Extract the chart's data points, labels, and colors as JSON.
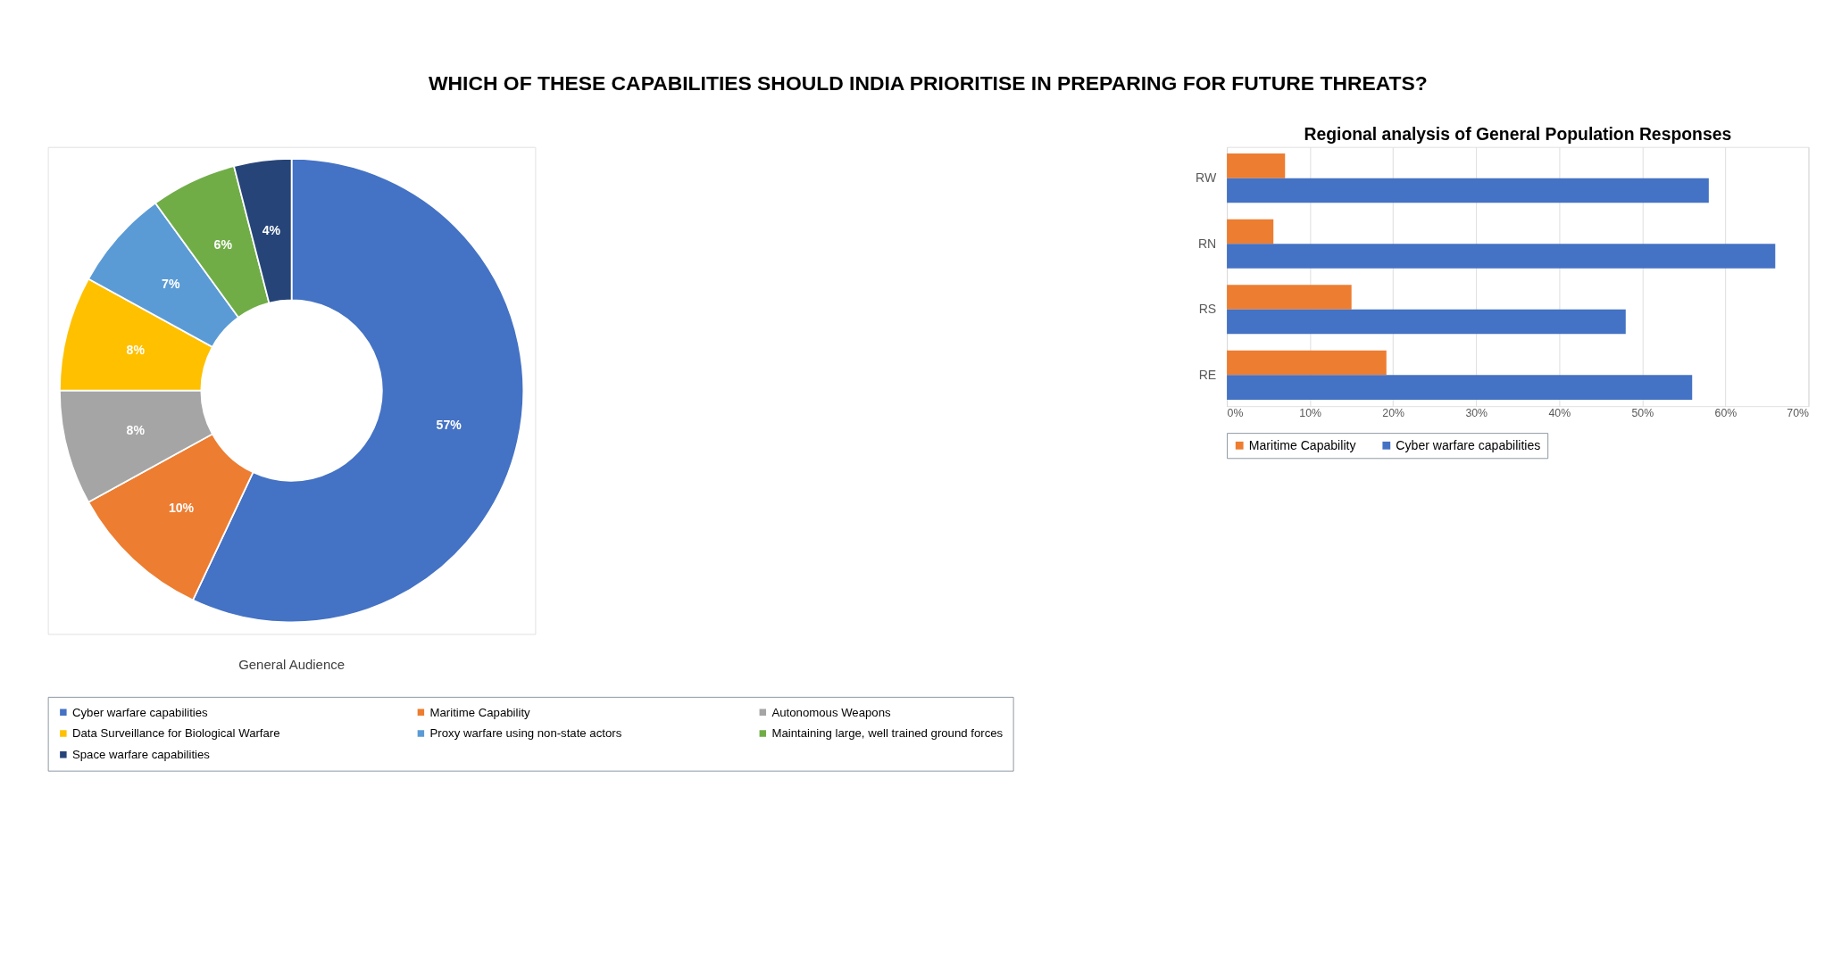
{
  "chart_data": [
    {
      "type": "donut",
      "title": "WHICH OF THESE CAPABILITIES SHOULD INDIA PRIORITISE IN PREPARING FOR FUTURE THREATS?",
      "xlabel": "General Audience",
      "categories": [
        "Cyber warfare capabilities",
        "Maritime Capability",
        "Autonomous Weapons",
        "Data Surveillance for Biological Warfare",
        "Proxy warfare using non-state actors",
        "Maintaining large, well trained ground forces",
        "Space warfare capabilities"
      ],
      "values": [
        57,
        10,
        8,
        8,
        7,
        6,
        4
      ],
      "value_labels": [
        "57%",
        "10%",
        "8%",
        "8%",
        "7%",
        "6%",
        "4%"
      ],
      "colors": [
        "#4472c4",
        "#ed7d31",
        "#a5a5a5",
        "#ffc000",
        "#5b9bd5",
        "#70ad47",
        "#264478"
      ],
      "legend": "bottom"
    },
    {
      "type": "bar",
      "orientation": "horizontal",
      "title": "Regional analysis of General Population Responses",
      "categories": [
        "RW",
        "RN",
        "RS",
        "RE"
      ],
      "series": [
        {
          "name": "Maritime Capability",
          "color": "#ed7d31",
          "values": [
            7,
            5.6,
            15,
            19.2
          ]
        },
        {
          "name": "Cyber warfare capabilities",
          "color": "#4472c4",
          "values": [
            58,
            66,
            48,
            56
          ]
        }
      ],
      "xlim": [
        0,
        70
      ],
      "xticks": [
        {
          "value": 0,
          "label": "0%"
        },
        {
          "value": 10,
          "label": "10%"
        },
        {
          "value": 20,
          "label": "20%"
        },
        {
          "value": 30,
          "label": "30%"
        },
        {
          "value": 40,
          "label": "40%"
        },
        {
          "value": 50,
          "label": "50%"
        },
        {
          "value": 60,
          "label": "60%"
        },
        {
          "value": 70,
          "label": "70%"
        }
      ],
      "grid": "x",
      "legend": "bottom"
    }
  ]
}
